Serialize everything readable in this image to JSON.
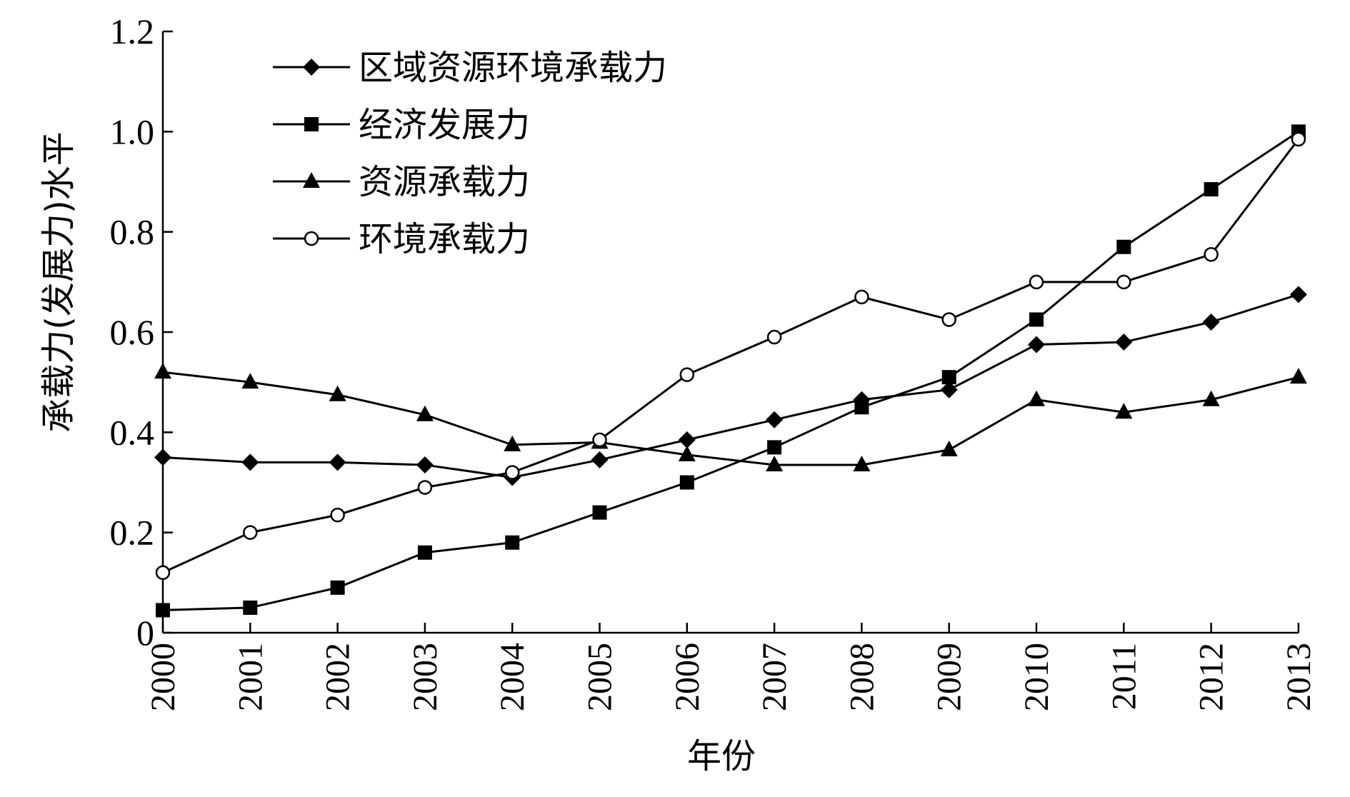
{
  "chart_data": {
    "type": "line",
    "title": "",
    "xlabel": "年份",
    "ylabel": "承载力(发展力)水平",
    "x": [
      "2000",
      "2001",
      "2002",
      "2003",
      "2004",
      "2005",
      "2006",
      "2007",
      "2008",
      "2009",
      "2010",
      "2011",
      "2012",
      "2013"
    ],
    "ylim": [
      0,
      1.2
    ],
    "yticks": [
      "0",
      "0.2",
      "0.4",
      "0.6",
      "0.8",
      "1.0",
      "1.2"
    ],
    "legend_position": "top-left",
    "grid": false,
    "series": [
      {
        "name": "区域资源环境承载力",
        "marker": "diamond",
        "values": [
          0.35,
          0.34,
          0.34,
          0.335,
          0.31,
          0.345,
          0.385,
          0.425,
          0.465,
          0.485,
          0.575,
          0.58,
          0.62,
          0.675
        ]
      },
      {
        "name": "经济发展力",
        "marker": "square",
        "values": [
          0.045,
          0.05,
          0.09,
          0.16,
          0.18,
          0.24,
          0.3,
          0.37,
          0.45,
          0.51,
          0.625,
          0.77,
          0.885,
          1.0
        ]
      },
      {
        "name": "资源承载力",
        "marker": "triangle",
        "values": [
          0.52,
          0.5,
          0.475,
          0.435,
          0.375,
          0.38,
          0.355,
          0.335,
          0.335,
          0.365,
          0.465,
          0.44,
          0.465,
          0.51
        ]
      },
      {
        "name": "环境承载力",
        "marker": "circle-open",
        "values": [
          0.12,
          0.2,
          0.235,
          0.29,
          0.32,
          0.385,
          0.515,
          0.59,
          0.67,
          0.625,
          0.7,
          0.7,
          0.755,
          0.985
        ]
      }
    ]
  }
}
